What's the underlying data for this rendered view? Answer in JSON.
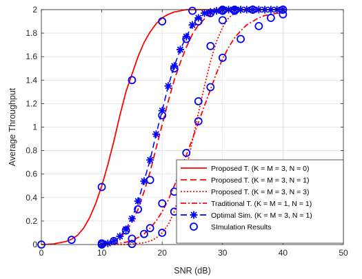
{
  "chart_data": {
    "type": "line",
    "title": "",
    "xlabel": "SNR (dB)",
    "ylabel": "Average Throughput",
    "xlim": [
      0,
      50
    ],
    "ylim": [
      0,
      2
    ],
    "xticks": [
      0,
      10,
      20,
      30,
      40,
      50
    ],
    "yticks": [
      0,
      0.2,
      0.4,
      0.6,
      0.8,
      1,
      1.2,
      1.4,
      1.6,
      1.8,
      2
    ],
    "xtick_labels": [
      "0",
      "10",
      "20",
      "30",
      "40",
      "50"
    ],
    "ytick_labels": [
      "0",
      "0.2",
      "0.4",
      "0.6",
      "0.8",
      "1",
      "1.2",
      "1.4",
      "1.6",
      "1.8",
      "2"
    ],
    "grid": true,
    "legend_position": "bottom-right",
    "series": [
      {
        "name": "Proposed T. (K = M = 3, N = 0)",
        "style": "solid",
        "color": "#ff0000",
        "x": [
          0,
          2,
          4,
          5,
          6,
          7,
          8,
          9,
          10,
          11,
          12,
          13,
          14,
          15,
          16,
          17,
          18,
          19,
          20,
          21,
          22,
          23,
          24,
          26,
          28,
          30,
          40
        ],
        "y": [
          0.0,
          0.005,
          0.025,
          0.045,
          0.08,
          0.14,
          0.23,
          0.35,
          0.5,
          0.68,
          0.88,
          1.1,
          1.3,
          1.45,
          1.6,
          1.72,
          1.81,
          1.88,
          1.93,
          1.96,
          1.98,
          1.99,
          2.0,
          2.0,
          2.0,
          2.0,
          2.0
        ]
      },
      {
        "name": "Proposed T. (K = M = 3, N = 1)",
        "style": "dashed",
        "color": "#ff0000",
        "x": [
          10,
          11,
          12,
          13,
          14,
          15,
          16,
          17,
          18,
          19,
          20,
          21,
          22,
          23,
          24,
          25,
          26,
          27,
          28,
          29,
          30,
          32,
          35,
          38,
          40
        ],
        "y": [
          0.005,
          0.015,
          0.03,
          0.06,
          0.11,
          0.19,
          0.3,
          0.45,
          0.62,
          0.82,
          1.02,
          1.22,
          1.4,
          1.55,
          1.68,
          1.79,
          1.87,
          1.92,
          1.96,
          1.98,
          1.99,
          2.0,
          2.0,
          2.0,
          2.0
        ]
      },
      {
        "name": "Proposed T. (K = M = 3, N = 3)",
        "style": "dotted",
        "color": "#ff0000",
        "x": [
          10,
          12,
          14,
          16,
          17,
          18,
          19,
          20,
          21,
          22,
          23,
          24,
          25,
          26,
          27,
          28,
          29,
          30,
          31,
          32,
          33,
          35,
          38,
          40
        ],
        "y": [
          0.0,
          0.0,
          0.0,
          0.01,
          0.015,
          0.03,
          0.055,
          0.1,
          0.17,
          0.28,
          0.45,
          0.65,
          0.88,
          1.12,
          1.35,
          1.56,
          1.73,
          1.85,
          1.93,
          1.97,
          1.99,
          2.0,
          2.0,
          2.0
        ]
      },
      {
        "name": "Traditional T. (K = M = 1, N = 1)",
        "style": "dashdot",
        "color": "#ff0000",
        "x": [
          10,
          12,
          14,
          15,
          16,
          17,
          18,
          19,
          20,
          21,
          22,
          23,
          24,
          25,
          26,
          27,
          28,
          29,
          30,
          31,
          32,
          33,
          34,
          35,
          36,
          37,
          38,
          39,
          40
        ],
        "y": [
          0.0,
          0.005,
          0.02,
          0.035,
          0.06,
          0.09,
          0.14,
          0.2,
          0.28,
          0.38,
          0.5,
          0.63,
          0.76,
          0.9,
          1.04,
          1.18,
          1.32,
          1.46,
          1.58,
          1.68,
          1.76,
          1.82,
          1.87,
          1.9,
          1.93,
          1.95,
          1.96,
          1.97,
          1.97
        ]
      },
      {
        "name": "Optimal Sim. (K = M = 3, N = 1)",
        "style": "dashed-marker-star",
        "color": "#0000ff",
        "x": [
          10,
          11,
          12,
          13,
          14,
          15,
          16,
          17,
          18,
          19,
          20,
          21,
          22,
          23,
          24,
          25,
          26,
          27,
          28,
          29,
          30,
          31,
          32,
          33,
          34,
          35,
          36,
          37,
          38,
          39,
          40
        ],
        "y": [
          0.0,
          0.01,
          0.03,
          0.07,
          0.13,
          0.22,
          0.37,
          0.54,
          0.72,
          0.94,
          1.14,
          1.35,
          1.52,
          1.66,
          1.77,
          1.87,
          1.93,
          1.97,
          1.98,
          1.99,
          2.0,
          2.0,
          2.0,
          2.0,
          2.0,
          2.0,
          2.0,
          2.0,
          2.0,
          2.0,
          2.0
        ]
      },
      {
        "name": "SImulation Results",
        "style": "marker-circle",
        "color": "#0000ff",
        "points": [
          [
            0,
            0.0
          ],
          [
            5,
            0.04
          ],
          [
            10,
            0.49
          ],
          [
            15,
            1.4
          ],
          [
            20,
            1.9
          ],
          [
            25,
            1.99
          ],
          [
            30,
            2.0
          ],
          [
            35,
            2.0
          ],
          [
            40,
            2.0
          ],
          [
            10,
            0.01
          ],
          [
            12,
            0.03
          ],
          [
            14,
            0.12
          ],
          [
            16,
            0.3
          ],
          [
            18,
            0.55
          ],
          [
            20,
            1.1
          ],
          [
            22,
            1.5
          ],
          [
            24,
            1.75
          ],
          [
            26,
            1.9
          ],
          [
            28,
            1.97
          ],
          [
            30,
            1.99
          ],
          [
            32,
            2.0
          ],
          [
            35,
            2.0
          ],
          [
            40,
            2.0
          ],
          [
            10,
            0.0
          ],
          [
            15,
            0.005
          ],
          [
            20,
            0.1
          ],
          [
            22,
            0.28
          ],
          [
            23,
            0.55
          ],
          [
            24,
            0.62
          ],
          [
            26,
            1.22
          ],
          [
            28,
            1.69
          ],
          [
            30,
            1.91
          ],
          [
            32,
            1.99
          ],
          [
            35,
            2.0
          ],
          [
            10,
            0.0
          ],
          [
            15,
            0.05
          ],
          [
            17,
            0.09
          ],
          [
            18,
            0.14
          ],
          [
            20,
            0.35
          ],
          [
            22,
            0.45
          ],
          [
            24,
            0.78
          ],
          [
            26,
            1.05
          ],
          [
            28,
            1.34
          ],
          [
            30,
            1.59
          ],
          [
            33,
            1.75
          ],
          [
            36,
            1.86
          ],
          [
            38,
            1.93
          ],
          [
            40,
            1.96
          ]
        ]
      }
    ]
  }
}
